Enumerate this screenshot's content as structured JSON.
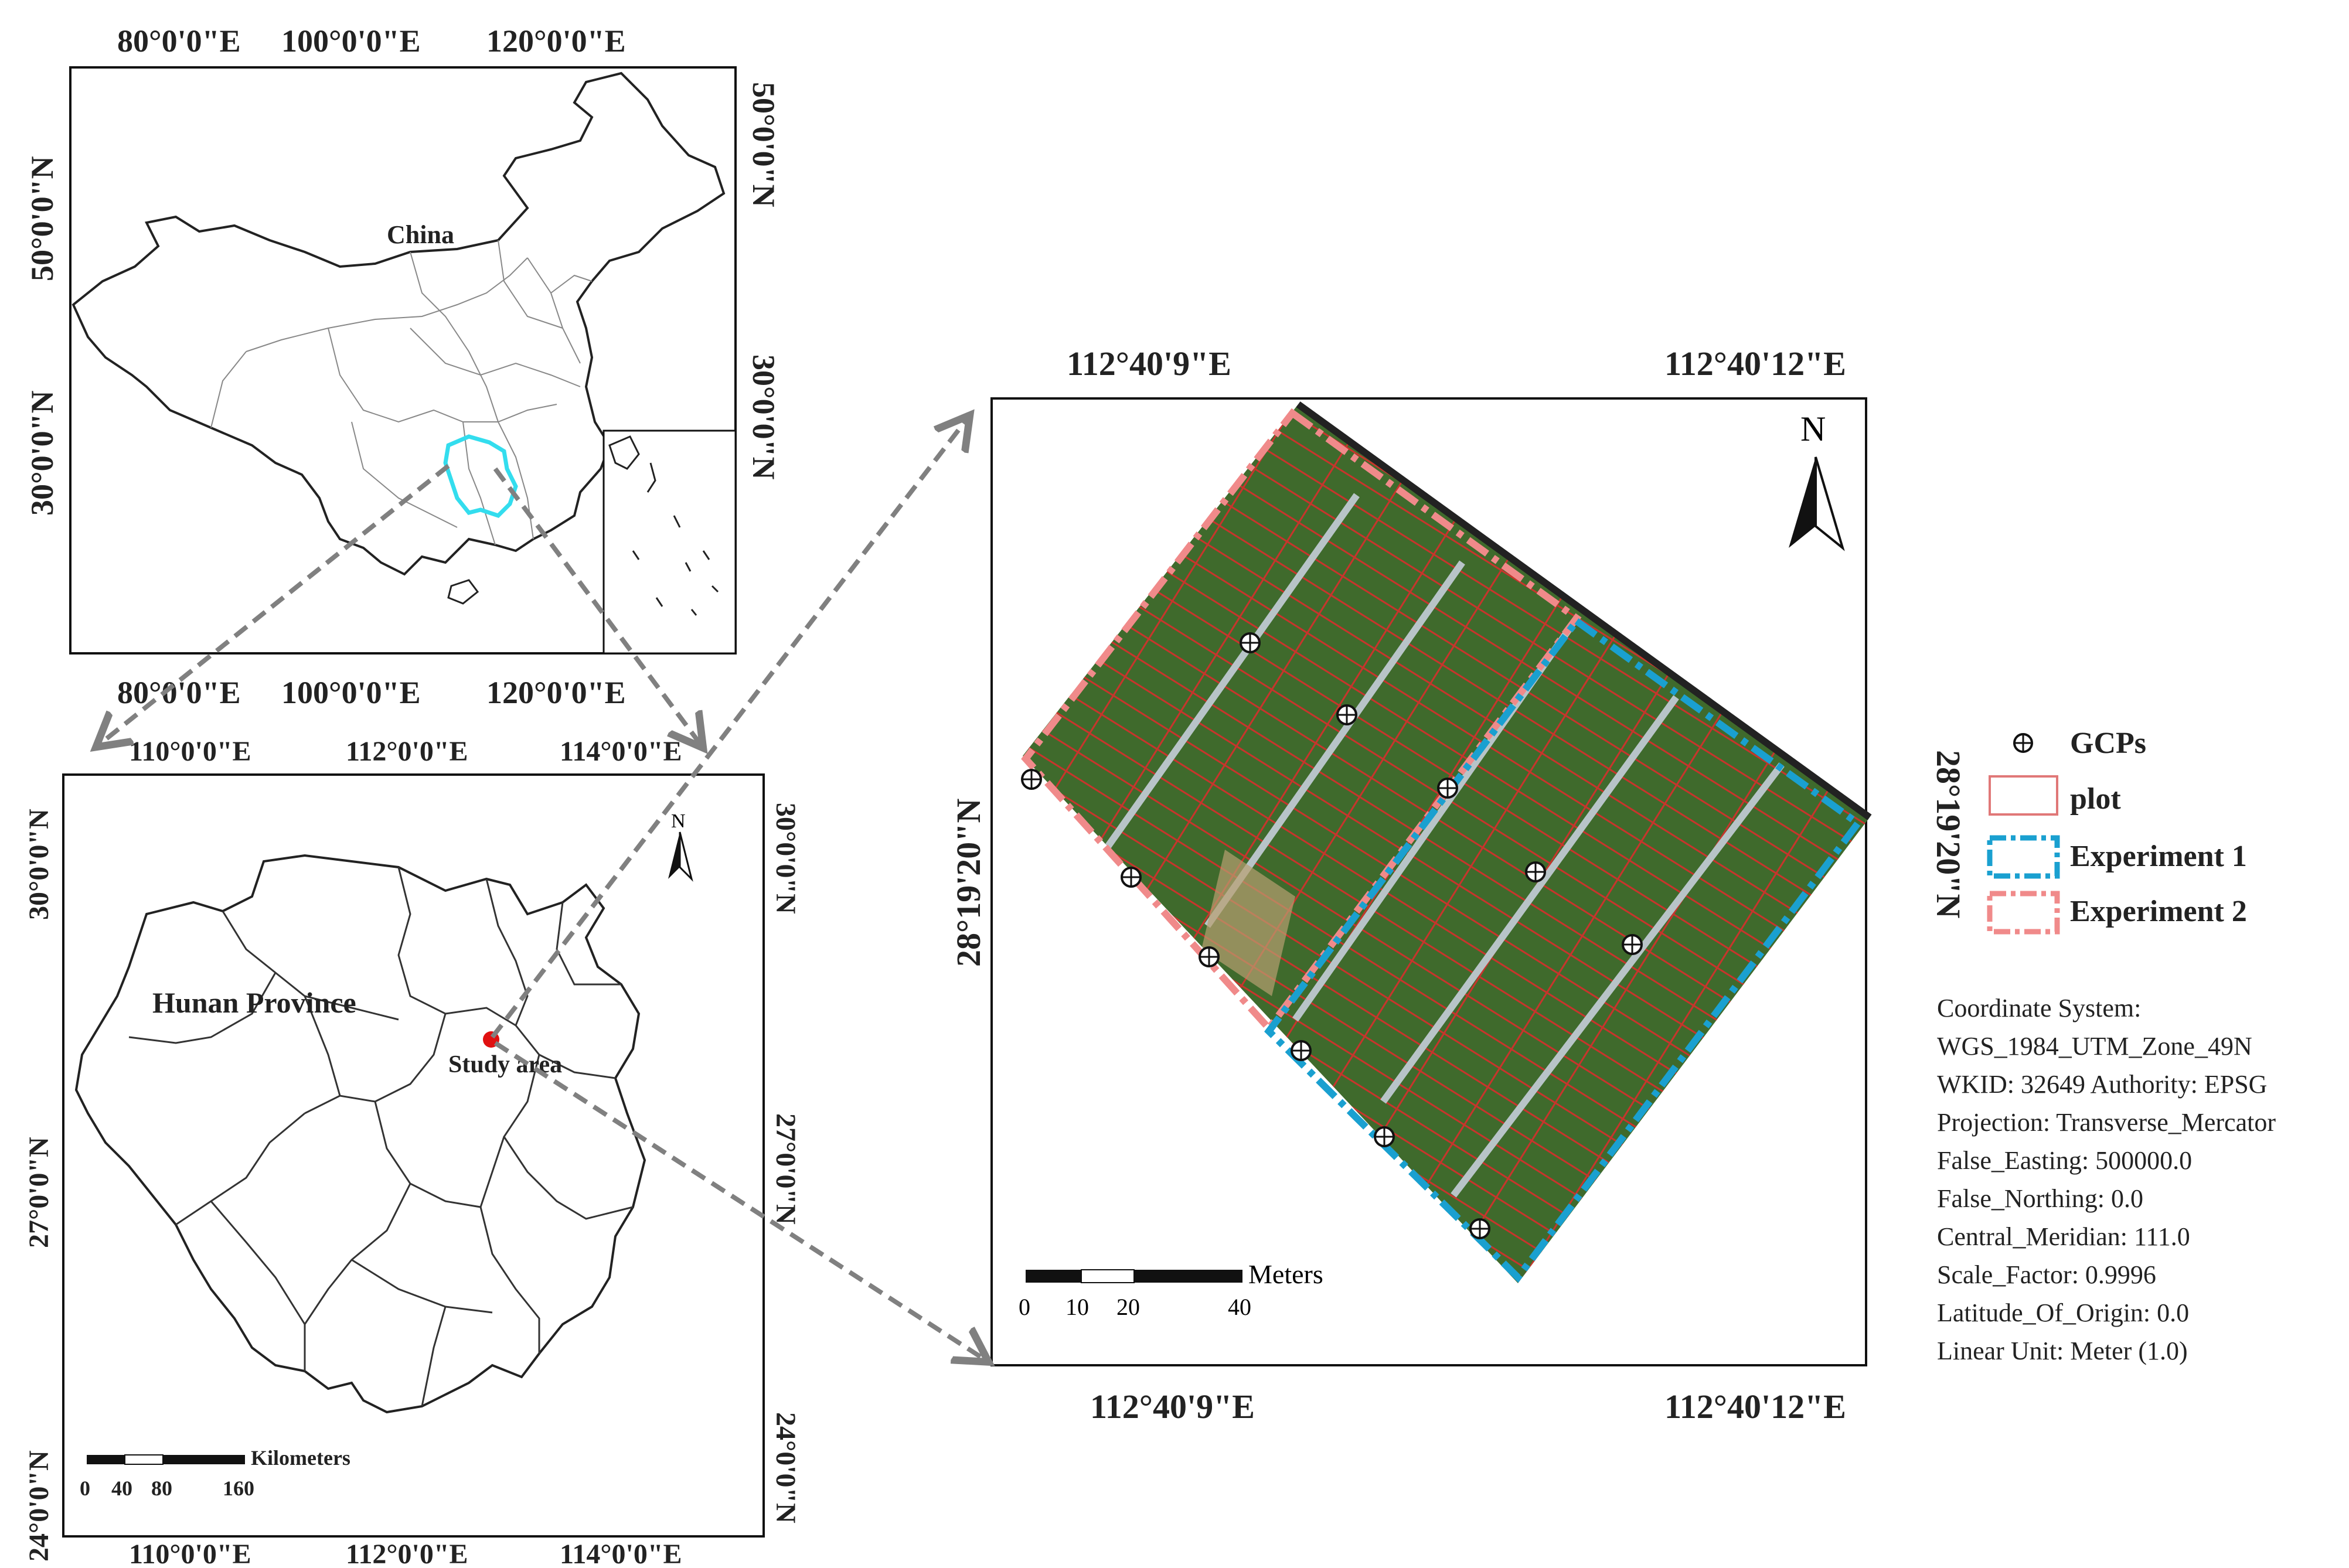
{
  "china_map": {
    "top_labels": [
      "80°0'0\"E",
      "100°0'0\"E",
      "120°0'0\"E"
    ],
    "bottom_labels": [
      "80°0'0\"E",
      "100°0'0\"E",
      "120°0'0\"E"
    ],
    "left_labels": [
      "50°0'0\"N",
      "30°0'0\"N"
    ],
    "right_labels": [
      "50°0'0\"N",
      "30°0'0\"N"
    ],
    "country_label": "China"
  },
  "hunan_map": {
    "top_labels": [
      "110°0'0\"E",
      "112°0'0\"E",
      "114°0'0\"E"
    ],
    "bottom_labels": [
      "110°0'0\"E",
      "112°0'0\"E",
      "114°0'0\"E"
    ],
    "left_labels": [
      "30°0'0\"N",
      "27°0'0\"N",
      "24°0'0\"N"
    ],
    "right_labels": [
      "30°0'0\"N",
      "27°0'0\"N",
      "24°0'0\"N"
    ],
    "province_label": "Hunan Province",
    "study_area_label": "Study area",
    "north_label": "N",
    "scale_unit": "Kilometers",
    "scale_ticks": [
      "0",
      "40",
      "80",
      "160"
    ]
  },
  "field_map": {
    "top_labels": [
      "112°40'9\"E",
      "112°40'12\"E"
    ],
    "bottom_labels": [
      "112°40'9\"E",
      "112°40'12\"E"
    ],
    "left_label": "28°19'20\"N",
    "right_label": "28°19'20\"N",
    "north_label": "N",
    "scale_unit": "Meters",
    "scale_ticks": [
      "0",
      "10",
      "20",
      "40"
    ]
  },
  "legend": {
    "items": [
      {
        "label": "GCPs",
        "symbol": "gcp"
      },
      {
        "label": "plot",
        "symbol": "plot",
        "color": "#e07878"
      },
      {
        "label": "Experiment 1",
        "symbol": "dashdot",
        "color": "#1aa0d0"
      },
      {
        "label": "Experiment 2",
        "symbol": "dashdot",
        "color": "#f08a8a"
      }
    ]
  },
  "coordinate_info": [
    "Coordinate System:",
    "WGS_1984_UTM_Zone_49N",
    "WKID: 32649 Authority: EPSG",
    "Projection: Transverse_Mercator",
    "False_Easting: 500000.0",
    "False_Northing: 0.0",
    "Central_Meridian: 111.0",
    "Scale_Factor: 0.9996",
    "Latitude_Of_Origin: 0.0",
    "Linear Unit: Meter (1.0)"
  ],
  "colors": {
    "hunan_outline": "#33ddee",
    "study_point": "#e01010",
    "field_green": "#3f6a2c",
    "arrow": "#808080"
  }
}
